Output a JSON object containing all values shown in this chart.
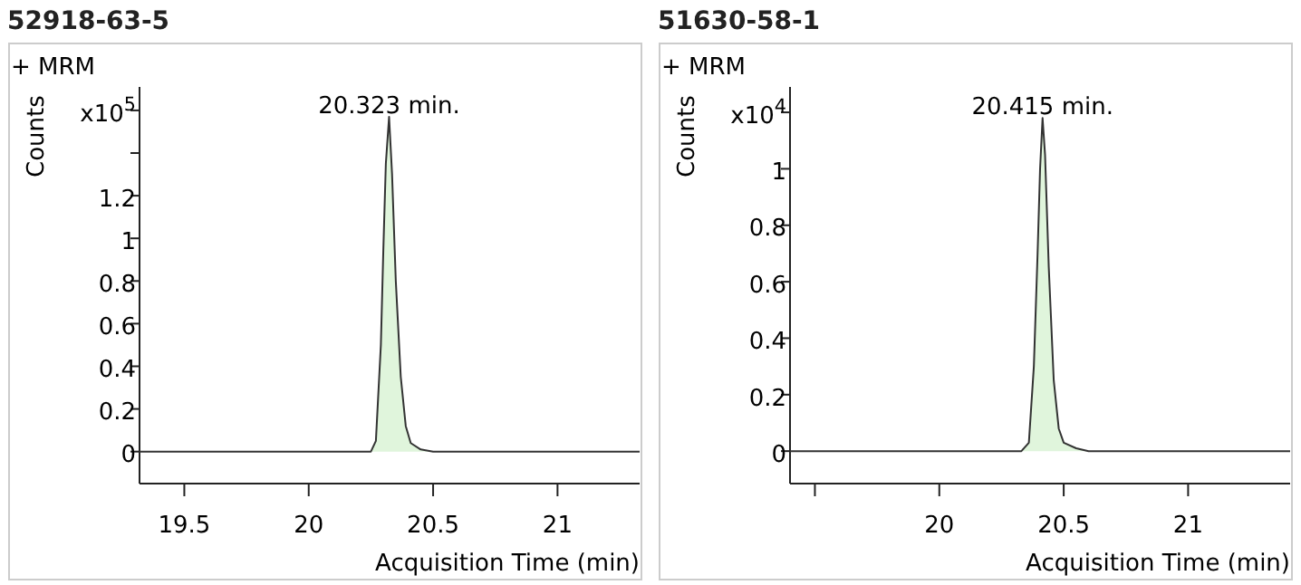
{
  "chart_data": [
    {
      "type": "area",
      "title": "52918-63-5",
      "subtitle": "+ MRM",
      "xlabel": "Acquisition Time (min)",
      "ylabel": "Counts",
      "xlim": [
        19.32,
        21.33
      ],
      "xticks": [
        19.5,
        20,
        20.5,
        21
      ],
      "ylim": [
        -0.15,
        1.71
      ],
      "yticks": [
        0,
        0.2,
        0.4,
        0.6,
        0.8,
        1,
        1.2,
        {
          "value": 1.4,
          "label": null
        },
        {
          "value": 1.6,
          "label": "x10$^{5}$"
        }
      ],
      "annotations": [
        {
          "text": "20.323 min.",
          "x": 20.323,
          "y": 1.57
        }
      ],
      "series": [
        {
          "color": "#e0f5dc",
          "x": [
            19.32,
            20.25,
            20.27,
            20.29,
            20.3,
            20.31,
            20.323,
            20.335,
            20.35,
            20.37,
            20.39,
            20.41,
            20.45,
            20.5,
            21.33
          ],
          "values": [
            0,
            0,
            0.05,
            0.5,
            0.95,
            1.35,
            1.57,
            1.3,
            0.8,
            0.35,
            0.12,
            0.04,
            0.01,
            0,
            0
          ]
        }
      ]
    },
    {
      "type": "area",
      "title": "51630-58-1",
      "subtitle": "+ MRM",
      "xlabel": "Acquisition Time (min)",
      "ylabel": "Counts",
      "xlim": [
        19.4,
        21.41
      ],
      "xticks": [
        {
          "value": 19.5,
          "label": null
        },
        20,
        20.5,
        21
      ],
      "ylim": [
        -0.115,
        1.29
      ],
      "yticks": [
        0,
        0.2,
        0.4,
        0.6,
        0.8,
        1,
        {
          "value": 1.2,
          "label": "x10$^{4}$"
        }
      ],
      "annotations": [
        {
          "text": "20.415 min.",
          "x": 20.415,
          "y": 1.18
        }
      ],
      "series": [
        {
          "color": "#e0f5dc",
          "x": [
            19.4,
            20.33,
            20.36,
            20.38,
            20.395,
            20.405,
            20.415,
            20.425,
            20.44,
            20.46,
            20.48,
            20.5,
            20.55,
            20.6,
            21.41
          ],
          "values": [
            0,
            0,
            0.03,
            0.3,
            0.7,
            1.0,
            1.18,
            1.05,
            0.65,
            0.25,
            0.08,
            0.03,
            0.01,
            0,
            0
          ]
        }
      ]
    }
  ]
}
